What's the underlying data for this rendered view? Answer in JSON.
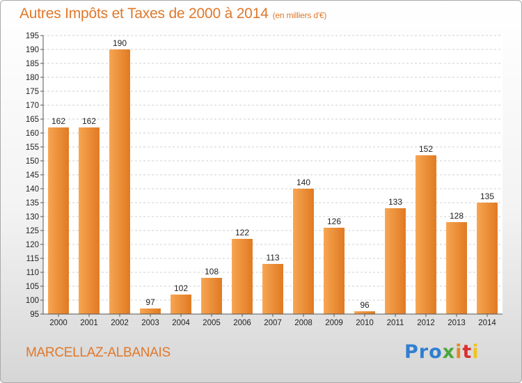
{
  "header": {
    "title": "Autres Impôts et Taxes de 2000 à 2014",
    "unit": "(en milliers d'€)"
  },
  "footer": {
    "commune": "MARCELLAZ-ALBANAIS",
    "logo": [
      "Pro",
      "x",
      "i",
      "t",
      "i"
    ]
  },
  "colors": {
    "bar_light": "#f7a552",
    "bar_dark": "#e07a22",
    "title": "#e0782a"
  },
  "chart_data": {
    "type": "bar",
    "title": "Autres Impôts et Taxes de 2000 à 2014",
    "subtitle": "(en milliers d'€)",
    "xlabel": "",
    "ylabel": "",
    "categories": [
      "2000",
      "2001",
      "2002",
      "2003",
      "2004",
      "2005",
      "2006",
      "2007",
      "2008",
      "2009",
      "2010",
      "2011",
      "2012",
      "2013",
      "2014"
    ],
    "values": [
      162,
      162,
      190,
      97,
      102,
      108,
      122,
      113,
      140,
      126,
      96,
      133,
      152,
      128,
      135
    ],
    "ylim": [
      95,
      195
    ],
    "yticks": [
      95,
      100,
      105,
      110,
      115,
      120,
      125,
      130,
      135,
      140,
      145,
      150,
      155,
      160,
      165,
      170,
      175,
      180,
      185,
      190,
      195
    ],
    "grid": true,
    "data_labels": true
  }
}
